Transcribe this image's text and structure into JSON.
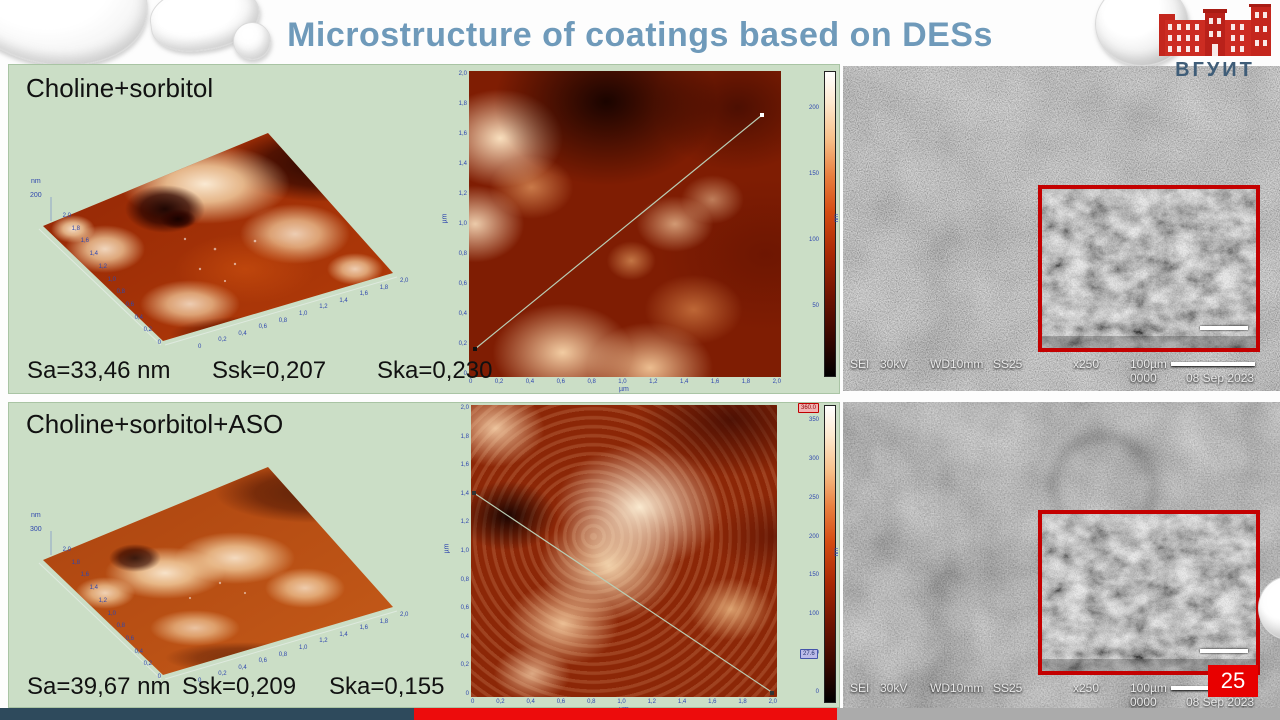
{
  "title": "Microstructure of coatings based on DESs",
  "logo": {
    "institution": "ВГУИТ"
  },
  "page_number": "25",
  "panels": [
    {
      "label": "Choline+sorbitol",
      "stats": {
        "sa": "Sa=33,46 nm",
        "ssk": "Ssk=0,207",
        "ska": "Ska=0,230"
      },
      "afm_3d": {
        "z_unit": "nm",
        "z_max": "200",
        "left_ticks": [
          "2,0",
          "1,8",
          "1,6",
          "1,4",
          "1,2",
          "1,0",
          "0,8",
          "0,6",
          "0,4",
          "0,2",
          "0"
        ],
        "right_ticks": [
          "0",
          "0,2",
          "0,4",
          "0,6",
          "0,8",
          "1,0",
          "1,2",
          "1,4",
          "1,6",
          "1,8",
          "2,0"
        ]
      },
      "afm_2d": {
        "y_ticks": [
          "2,0",
          "1,8",
          "1,6",
          "1,4",
          "1,2",
          "1,0",
          "0,8",
          "0,6",
          "0,4",
          "0,2",
          "0"
        ],
        "x_ticks": [
          "0",
          "0,2",
          "0,4",
          "0,6",
          "0,8",
          "1,0",
          "1,2",
          "1,4",
          "1,6",
          "1,8",
          "2,0"
        ],
        "x_unit": "µm",
        "y_unit": "µm",
        "colorbar": {
          "unit": "nm",
          "labels": [
            "200",
            "150",
            "100",
            "50"
          ]
        }
      },
      "sem": {
        "detector": "SEI",
        "voltage": "30kV",
        "working_distance": "WD10mm",
        "spot_size": "SS25",
        "magnification": "x250",
        "scale": "100µm",
        "frame": "0000",
        "date": "08 Sep 2023"
      }
    },
    {
      "label": "Choline+sorbitol+ASO",
      "stats": {
        "sa": "Sa=39,67 nm",
        "ssk": "Ssk=0,209",
        "ska": "Ska=0,155"
      },
      "afm_3d": {
        "z_unit": "nm",
        "z_max": "300",
        "left_ticks": [
          "2,0",
          "1,8",
          "1,6",
          "1,4",
          "1,2",
          "1,0",
          "0,8",
          "0,6",
          "0,4",
          "0,2",
          "0"
        ],
        "right_ticks": [
          "0",
          "0,2",
          "0,4",
          "0,6",
          "0,8",
          "1,0",
          "1,2",
          "1,4",
          "1,6",
          "1,8",
          "2,0"
        ]
      },
      "afm_2d": {
        "y_ticks": [
          "2,0",
          "1,8",
          "1,6",
          "1,4",
          "1,2",
          "1,0",
          "0,8",
          "0,6",
          "0,4",
          "0,2",
          "0"
        ],
        "x_ticks": [
          "0",
          "0,2",
          "0,4",
          "0,6",
          "0,8",
          "1,0",
          "1,2",
          "1,4",
          "1,6",
          "1,8",
          "2,0"
        ],
        "x_unit": "µm",
        "y_unit": "µm",
        "colorbar": {
          "unit": "nm",
          "labels": [
            "350",
            "300",
            "250",
            "200",
            "150",
            "100",
            "50",
            "0"
          ],
          "max": "360.0",
          "min": "27.6"
        }
      },
      "sem": {
        "detector": "SEI",
        "voltage": "30kV",
        "working_distance": "WD10mm",
        "spot_size": "SS25",
        "magnification": "x250",
        "scale": "100µm",
        "frame": "0000",
        "date": "08 Sep 2023"
      }
    }
  ]
}
